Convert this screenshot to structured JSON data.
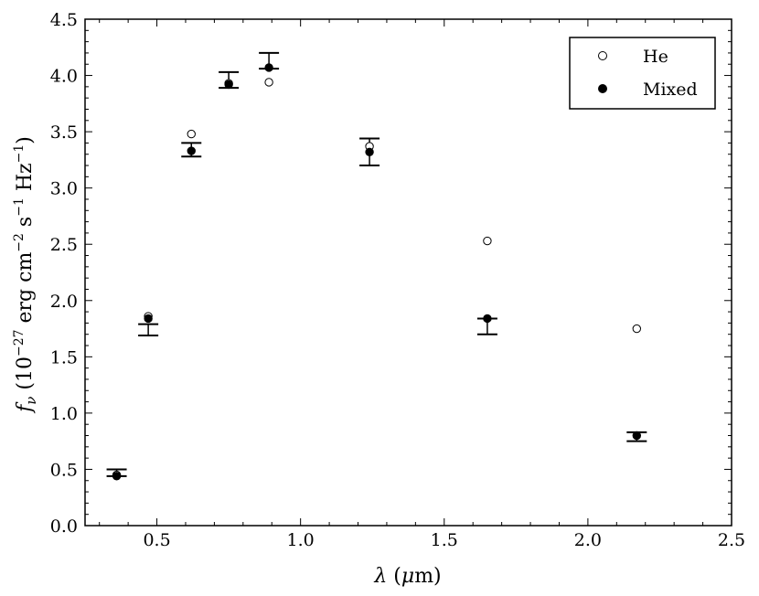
{
  "chart_data": {
    "type": "scatter",
    "xlabel": "λ (μm)",
    "ylabel": "fν (10−27 erg cm−2 s−1 Hz−1)",
    "xlim": [
      0.25,
      2.5
    ],
    "ylim": [
      0.0,
      4.5
    ],
    "xticks": [
      "0.5",
      "1.0",
      "1.5",
      "2.0",
      "2.5"
    ],
    "yticks": [
      "0.0",
      "0.5",
      "1.0",
      "1.5",
      "2.0",
      "2.5",
      "3.0",
      "3.5",
      "4.0",
      "4.5"
    ],
    "grid": false,
    "legend_position": "top-right",
    "observed": {
      "x": [
        0.36,
        0.47,
        0.62,
        0.75,
        0.89,
        1.24,
        1.65,
        2.17
      ],
      "y": [
        0.47,
        1.74,
        3.34,
        3.96,
        4.13,
        3.32,
        1.77,
        0.79
      ],
      "yerr": [
        0.03,
        0.05,
        0.06,
        0.07,
        0.07,
        0.12,
        0.07,
        0.04
      ]
    },
    "series": [
      {
        "name": "He",
        "marker": "open-circle",
        "x": [
          0.36,
          0.47,
          0.62,
          0.75,
          0.89,
          1.24,
          1.65,
          2.17
        ],
        "y": [
          0.45,
          1.86,
          3.48,
          3.93,
          3.94,
          3.37,
          2.53,
          1.75
        ]
      },
      {
        "name": "Mixed",
        "marker": "filled-circle",
        "x": [
          0.36,
          0.47,
          0.62,
          0.75,
          0.89,
          1.24,
          1.65,
          2.17
        ],
        "y": [
          0.44,
          1.84,
          3.33,
          3.92,
          4.07,
          3.32,
          1.84,
          0.8
        ]
      }
    ]
  }
}
